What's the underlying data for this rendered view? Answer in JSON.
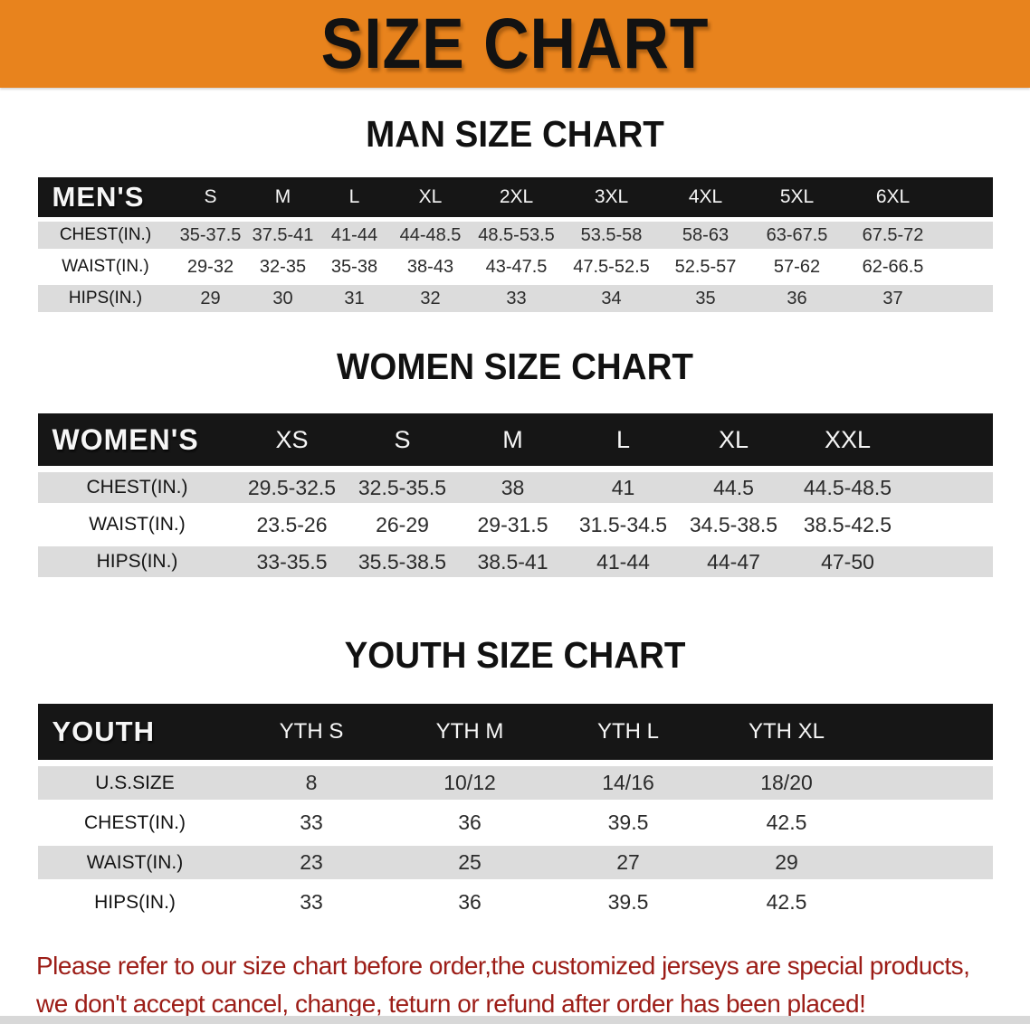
{
  "banner": {
    "title": "SIZE CHART",
    "bg_color": "#E8831D"
  },
  "sections": [
    {
      "id": "men",
      "heading": "MAN SIZE CHART",
      "table": {
        "corner_label": "MEN'S",
        "size_columns": [
          "S",
          "M",
          "L",
          "XL",
          "2XL",
          "3XL",
          "4XL",
          "5XL",
          "6XL"
        ],
        "rows": [
          {
            "label": "CHEST(IN.)",
            "values": [
              "35-37.5",
              "37.5-41",
              "41-44",
              "44-48.5",
              "48.5-53.5",
              "53.5-58",
              "58-63",
              "63-67.5",
              "67.5-72"
            ]
          },
          {
            "label": "WAIST(IN.)",
            "values": [
              "29-32",
              "32-35",
              "35-38",
              "38-43",
              "43-47.5",
              "47.5-52.5",
              "52.5-57",
              "57-62",
              "62-66.5"
            ]
          },
          {
            "label": "HIPS(IN.)",
            "values": [
              "29",
              "30",
              "31",
              "32",
              "33",
              "34",
              "35",
              "36",
              "37"
            ]
          }
        ]
      }
    },
    {
      "id": "women",
      "heading": "WOMEN SIZE CHART",
      "table": {
        "corner_label": "WOMEN'S",
        "size_columns": [
          "XS",
          "S",
          "M",
          "L",
          "XL",
          "XXL"
        ],
        "rows": [
          {
            "label": "CHEST(IN.)",
            "values": [
              "29.5-32.5",
              "32.5-35.5",
              "38",
              "41",
              "44.5",
              "44.5-48.5"
            ]
          },
          {
            "label": "WAIST(IN.)",
            "values": [
              "23.5-26",
              "26-29",
              "29-31.5",
              "31.5-34.5",
              "34.5-38.5",
              "38.5-42.5"
            ]
          },
          {
            "label": "HIPS(IN.)",
            "values": [
              "33-35.5",
              "35.5-38.5",
              "38.5-41",
              "41-44",
              "44-47",
              "47-50"
            ]
          }
        ]
      }
    },
    {
      "id": "youth",
      "heading": "YOUTH SIZE CHART",
      "table": {
        "corner_label": "YOUTH",
        "size_columns": [
          "YTH S",
          "YTH M",
          "YTH L",
          "YTH XL"
        ],
        "rows": [
          {
            "label": "U.S.SIZE",
            "values": [
              "8",
              "10/12",
              "14/16",
              "18/20"
            ]
          },
          {
            "label": "CHEST(IN.)",
            "values": [
              "33",
              "36",
              "39.5",
              "42.5"
            ]
          },
          {
            "label": "WAIST(IN.)",
            "values": [
              "23",
              "25",
              "27",
              "29"
            ]
          },
          {
            "label": "HIPS(IN.)",
            "values": [
              "33",
              "36",
              "39.5",
              "42.5"
            ]
          }
        ]
      }
    }
  ],
  "disclaimer": {
    "line1": "Please refer to our size chart before order,the customized jerseys are special products,",
    "line2": "we don't accept cancel, change, teturn or refund after order has been placed!",
    "text_color": "#9C1D17"
  },
  "colors": {
    "header_bar": "#161616",
    "row_alt": "#DCDCDC",
    "banner_bg": "#E8831D"
  }
}
